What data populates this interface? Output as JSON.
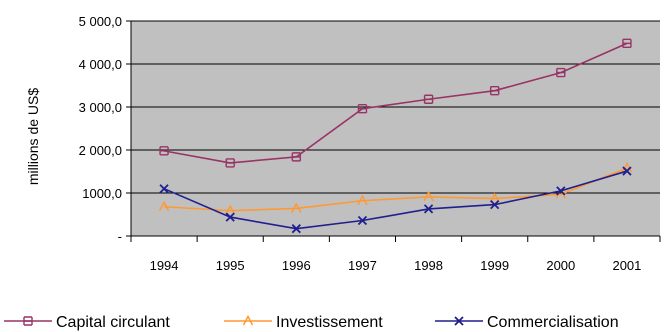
{
  "chart_data": {
    "type": "line",
    "title": "",
    "xlabel": "",
    "ylabel": "millions de US$",
    "categories": [
      "1994",
      "1995",
      "1996",
      "1997",
      "1998",
      "1999",
      "2000",
      "2001"
    ],
    "ylim": [
      0,
      5000
    ],
    "yticks": [
      0,
      1000,
      2000,
      3000,
      4000,
      5000
    ],
    "ytick_labels": [
      "-",
      "1000,0",
      "2 000,0",
      "3 000,0",
      "4 000,0",
      "5 000,0"
    ],
    "grid": true,
    "legend_position": "bottom",
    "plot_background": "#c0c0c0",
    "series": [
      {
        "name": "Capital circulant",
        "color": "#993366",
        "marker": "plus",
        "values": [
          1980,
          1700,
          1840,
          2960,
          3180,
          3380,
          3800,
          4480
        ]
      },
      {
        "name": "Investissement",
        "color": "#ff9933",
        "marker": "triangle",
        "values": [
          680,
          590,
          640,
          820,
          910,
          870,
          970,
          1580
        ]
      },
      {
        "name": "Commercialisation",
        "color": "#1f1f8f",
        "marker": "x",
        "values": [
          1100,
          440,
          170,
          360,
          630,
          730,
          1050,
          1510
        ]
      }
    ]
  }
}
